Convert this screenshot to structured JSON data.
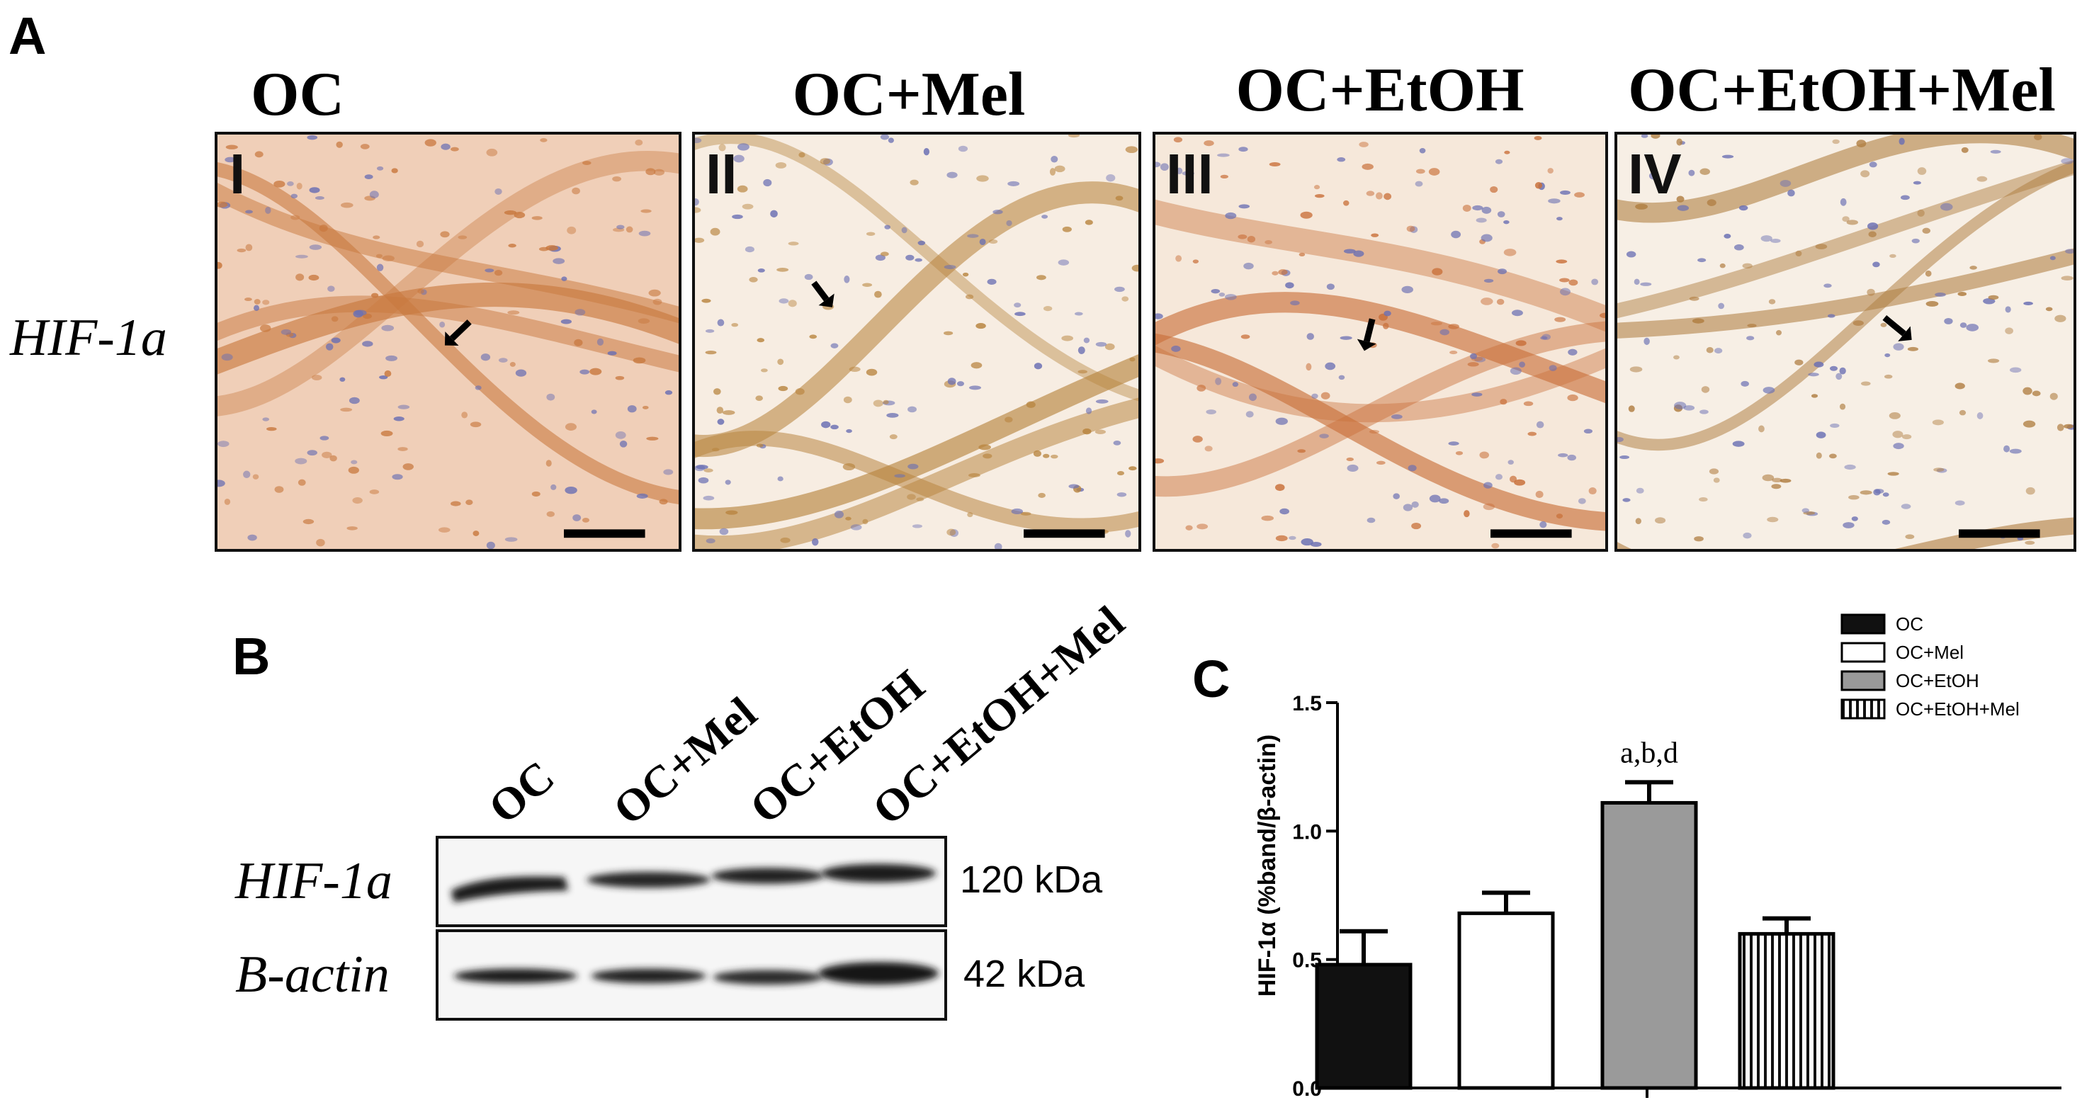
{
  "panels": {
    "a": "A",
    "b": "B",
    "c": "C"
  },
  "micrographs": {
    "row_label": "HIF-1a",
    "titles": [
      "OC",
      "OC+Mel",
      "OC+EtOH",
      "OC+EtOH+Mel"
    ],
    "numerals": [
      "I",
      "II",
      "III",
      "IV"
    ],
    "background_colors": [
      "#f0cfb8",
      "#f7ede2",
      "#f6e8da",
      "#f7efe5"
    ],
    "stain_colors": [
      "#c8783e",
      "#b8843e",
      "#c9703a",
      "#b07e42"
    ]
  },
  "western_blot": {
    "lanes": [
      "OC",
      "OC+Mel",
      "OC+EtOH",
      "OC+EtOH+Mel"
    ],
    "rows": [
      {
        "label": "HIF-1a",
        "size": "120 kDa"
      },
      {
        "label": "B-actin",
        "size": "42 kDa"
      }
    ]
  },
  "chart_data": {
    "type": "bar",
    "categories": [
      "OC",
      "OC+Mel",
      "OC+EtOH",
      "OC+EtOH+Mel"
    ],
    "values": [
      0.48,
      0.68,
      1.11,
      0.6
    ],
    "errors": [
      0.13,
      0.08,
      0.08,
      0.06
    ],
    "fills": [
      "solid-black",
      "white",
      "gray",
      "vertical-stripes"
    ],
    "colors": [
      "#111111",
      "#ffffff",
      "#9a9a9a",
      "#ffffff"
    ],
    "ylabel": "HIF-1α (%band/β-actin)",
    "ylim": [
      0,
      1.5
    ],
    "yticks": [
      "0.0",
      "0.5",
      "1.0",
      "1.5"
    ],
    "annotation": {
      "category": "OC+EtOH",
      "text": "a,b,d"
    },
    "legend": [
      "OC",
      "OC+Mel",
      "OC+EtOH",
      "OC+EtOH+Mel"
    ],
    "legend_position": "top-right",
    "grid": false
  }
}
